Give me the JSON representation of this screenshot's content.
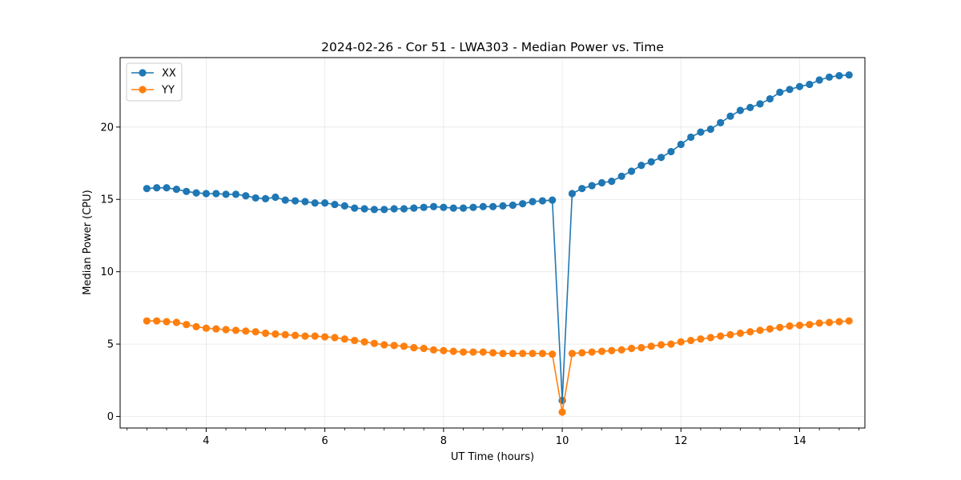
{
  "chart_data": {
    "type": "line",
    "title": "2024-02-26 - Cor 51 - LWA303 - Median Power vs. Time",
    "xlabel": "UT Time (hours)",
    "ylabel": "Median Power (CPU)",
    "xlim": [
      2.55,
      15.1
    ],
    "ylim": [
      -0.8,
      24.8
    ],
    "xticks": [
      4,
      6,
      8,
      10,
      12,
      14
    ],
    "xtick_labels": [
      "4",
      "6",
      "8",
      "10",
      "12",
      "14"
    ],
    "xminor_ticks": [
      2.667,
      3.0,
      3.333,
      3.667,
      4.333,
      4.667,
      5.0,
      5.333,
      5.667,
      6.333,
      6.667,
      7.0,
      7.333,
      7.667,
      8.333,
      8.667,
      9.0,
      9.333,
      9.667,
      10.333,
      10.667,
      11.0,
      11.333,
      11.667,
      12.333,
      12.667,
      13.0,
      13.333,
      13.667,
      14.333,
      14.667,
      15.0
    ],
    "yticks": [
      0,
      5,
      10,
      15,
      20
    ],
    "ytick_labels": [
      "0",
      "5",
      "10",
      "15",
      "20"
    ],
    "grid": true,
    "legend": "top-left",
    "x": [
      3.0,
      3.167,
      3.333,
      3.5,
      3.667,
      3.833,
      4.0,
      4.167,
      4.333,
      4.5,
      4.667,
      4.833,
      5.0,
      5.167,
      5.333,
      5.5,
      5.667,
      5.833,
      6.0,
      6.167,
      6.333,
      6.5,
      6.667,
      6.833,
      7.0,
      7.167,
      7.333,
      7.5,
      7.667,
      7.833,
      8.0,
      8.167,
      8.333,
      8.5,
      8.667,
      8.833,
      9.0,
      9.167,
      9.333,
      9.5,
      9.667,
      9.833,
      10.0,
      10.167,
      10.333,
      10.5,
      10.667,
      10.833,
      11.0,
      11.167,
      11.333,
      11.5,
      11.667,
      11.833,
      12.0,
      12.167,
      12.333,
      12.5,
      12.667,
      12.833,
      13.0,
      13.167,
      13.333,
      13.5,
      13.667,
      13.833,
      14.0,
      14.167,
      14.333,
      14.5,
      14.667,
      14.833
    ],
    "series": [
      {
        "name": "XX",
        "color": "#1f77b4",
        "values": [
          15.75,
          15.8,
          15.8,
          15.7,
          15.55,
          15.45,
          15.4,
          15.4,
          15.35,
          15.35,
          15.25,
          15.1,
          15.05,
          15.15,
          14.95,
          14.9,
          14.85,
          14.75,
          14.75,
          14.65,
          14.55,
          14.4,
          14.35,
          14.3,
          14.3,
          14.35,
          14.35,
          14.4,
          14.45,
          14.5,
          14.45,
          14.4,
          14.4,
          14.45,
          14.5,
          14.5,
          14.55,
          14.6,
          14.7,
          14.85,
          14.9,
          14.95,
          1.1,
          15.4,
          15.75,
          15.95,
          16.15,
          16.25,
          16.6,
          16.95,
          17.35,
          17.6,
          17.9,
          18.3,
          18.8,
          19.3,
          19.65,
          19.85,
          20.3,
          20.75,
          21.15,
          21.35,
          21.6,
          21.95,
          22.4,
          22.6,
          22.8,
          22.95,
          23.25,
          23.45,
          23.55,
          23.6
        ]
      },
      {
        "name": "YY",
        "color": "#ff7f0e",
        "values": [
          6.6,
          6.6,
          6.55,
          6.5,
          6.35,
          6.2,
          6.1,
          6.05,
          6.0,
          5.95,
          5.9,
          5.85,
          5.75,
          5.7,
          5.65,
          5.6,
          5.55,
          5.55,
          5.5,
          5.45,
          5.35,
          5.25,
          5.15,
          5.05,
          4.95,
          4.9,
          4.85,
          4.75,
          4.7,
          4.6,
          4.55,
          4.5,
          4.45,
          4.45,
          4.45,
          4.4,
          4.35,
          4.35,
          4.35,
          4.35,
          4.35,
          4.3,
          0.3,
          4.35,
          4.4,
          4.45,
          4.5,
          4.55,
          4.6,
          4.7,
          4.75,
          4.85,
          4.95,
          5.0,
          5.15,
          5.25,
          5.35,
          5.45,
          5.55,
          5.65,
          5.75,
          5.85,
          5.95,
          6.05,
          6.15,
          6.25,
          6.3,
          6.35,
          6.45,
          6.5,
          6.55,
          6.6
        ]
      }
    ]
  }
}
